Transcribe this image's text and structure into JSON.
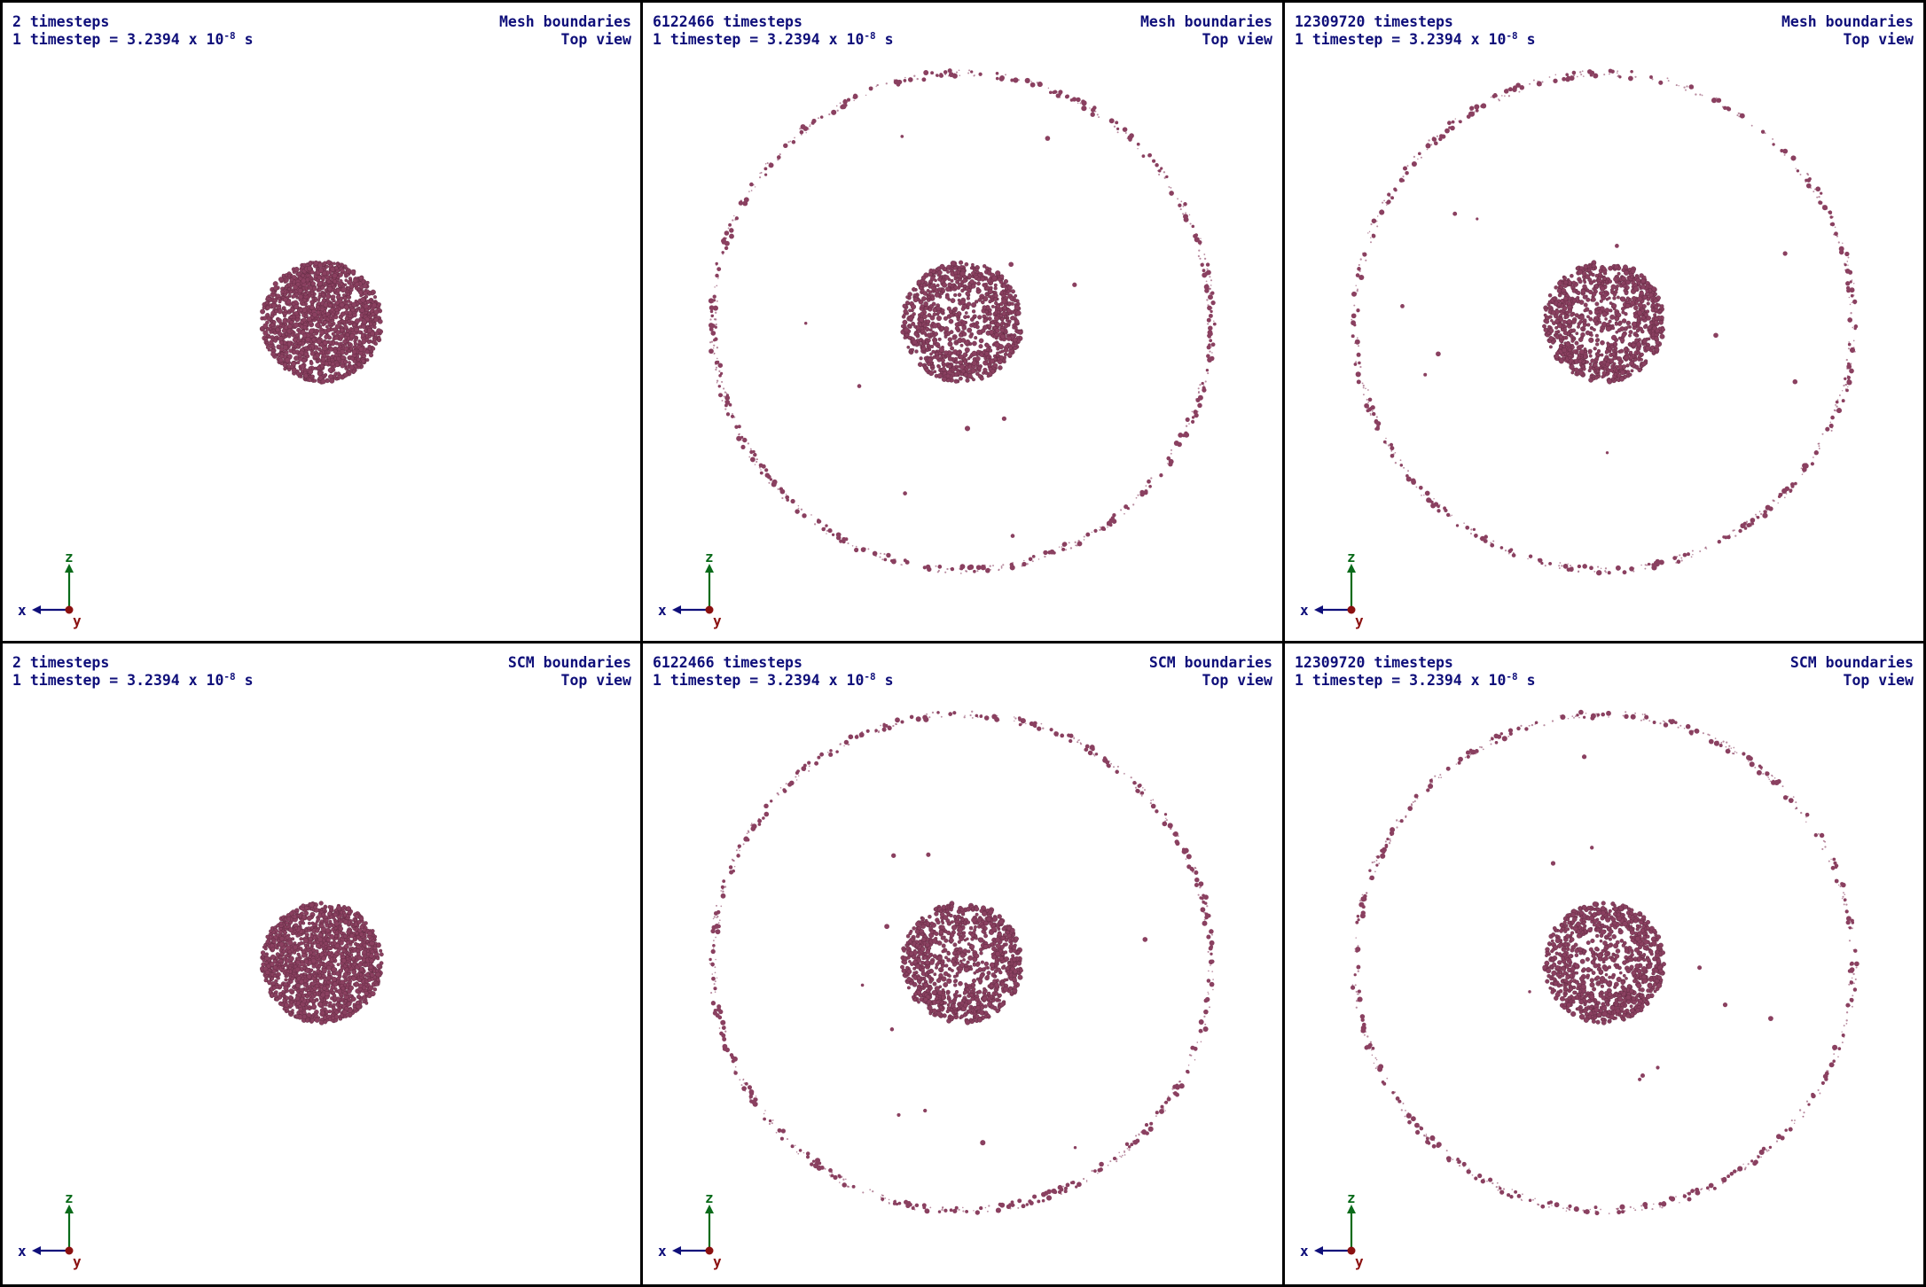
{
  "colors": {
    "text": "#0f0f7a",
    "particle": "#8a4060",
    "particle_edge": "#5e2a40",
    "axis_x": "#0f0f7a",
    "axis_z": "#0a6b1a",
    "axis_y": "#8b1010",
    "border": "#000000"
  },
  "axis_labels": {
    "x": "x",
    "y": "y",
    "z": "z"
  },
  "panels": [
    {
      "steps": "2 timesteps",
      "unit_prefix": "1 timestep = 3.2394 x 10",
      "unit_exp": "-8",
      "unit_suffix": " s",
      "boundary": "Mesh boundaries",
      "view": "Top view",
      "state": "initial"
    },
    {
      "steps": "6122466 timesteps",
      "unit_prefix": "1 timestep = 3.2394 x 10",
      "unit_exp": "-8",
      "unit_suffix": " s",
      "boundary": "Mesh boundaries",
      "view": "Top view",
      "state": "ring"
    },
    {
      "steps": "12309720 timesteps",
      "unit_prefix": "1 timestep = 3.2394 x 10",
      "unit_exp": "-8",
      "unit_suffix": " s",
      "boundary": "Mesh boundaries",
      "view": "Top view",
      "state": "ring-late"
    },
    {
      "steps": "2 timesteps",
      "unit_prefix": "1 timestep = 3.2394 x 10",
      "unit_exp": "-8",
      "unit_suffix": " s",
      "boundary": "SCM boundaries",
      "view": "Top view",
      "state": "initial"
    },
    {
      "steps": "6122466 timesteps",
      "unit_prefix": "1 timestep = 3.2394 x 10",
      "unit_exp": "-8",
      "unit_suffix": " s",
      "boundary": "SCM boundaries",
      "view": "Top view",
      "state": "ring"
    },
    {
      "steps": "12309720 timesteps",
      "unit_prefix": "1 timestep = 3.2394 x 10",
      "unit_exp": "-8",
      "unit_suffix": " s",
      "boundary": "SCM boundaries",
      "view": "Top view",
      "state": "ring-late"
    }
  ]
}
